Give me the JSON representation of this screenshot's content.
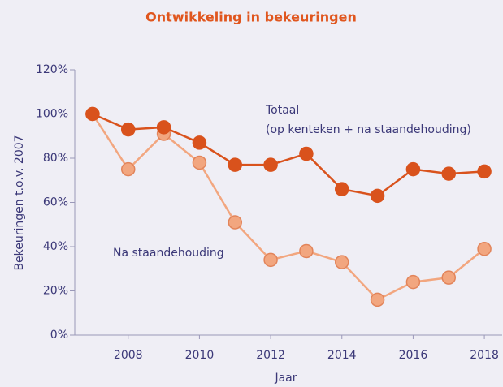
{
  "chart_data": {
    "type": "line",
    "title": "Ontwikkeling in bekeuringen",
    "x_label": "Jaar",
    "y_label": "Bekeuringen t.o.v. 2007",
    "x": [
      2007,
      2008,
      2009,
      2010,
      2011,
      2012,
      2013,
      2014,
      2015,
      2016,
      2017,
      2018
    ],
    "series": [
      {
        "name": "Totaal",
        "color": "#d9521c",
        "values": [
          100,
          93,
          94,
          87,
          77,
          77,
          82,
          66,
          63,
          75,
          73,
          74
        ]
      },
      {
        "name": "Na staandehouding",
        "color": "#f2a67f",
        "values": [
          100,
          75,
          91,
          78,
          51,
          34,
          38,
          33,
          16,
          24,
          26,
          39
        ]
      }
    ],
    "annotations": [
      "Totaal",
      "(op kenteken + na staandehouding)",
      "Na staandehouding"
    ],
    "xlim": [
      2006.5,
      2018.5
    ],
    "xticks": [
      2008,
      2010,
      2012,
      2014,
      2016,
      2018
    ],
    "ylim": [
      0,
      120
    ],
    "yticks": [
      {
        "value": 0,
        "label": "0%"
      },
      {
        "value": 20,
        "label": "20%"
      },
      {
        "value": 40,
        "label": "40%"
      },
      {
        "value": 60,
        "label": "60%"
      },
      {
        "value": 80,
        "label": "80%"
      },
      {
        "value": 100,
        "label": "100%"
      },
      {
        "value": 120,
        "label": "120%"
      }
    ]
  }
}
